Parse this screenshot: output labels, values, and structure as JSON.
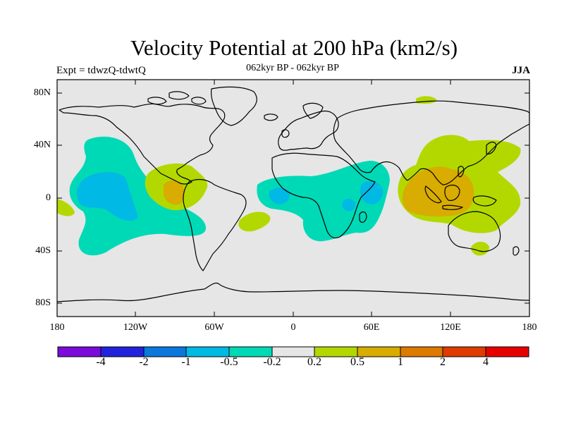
{
  "header": {
    "title": "Velocity Potential at 200 hPa (km2/s)",
    "experiment": "Expt = tdwzQ-tdwtQ",
    "period": "062kyr BP - 062kyr BP",
    "season": "JJA"
  },
  "map": {
    "projection": "cylindrical-equidistant",
    "lon_range": [
      -180,
      180
    ],
    "lat_range": [
      -90,
      90
    ],
    "coastlines": true,
    "background": "#e6e6e6",
    "lat_ticks": [
      "80N",
      "40N",
      "0",
      "40S",
      "80S"
    ],
    "lon_ticks": [
      "180",
      "120W",
      "60W",
      "0",
      "60E",
      "120E",
      "180"
    ]
  },
  "colorbar": {
    "colors": [
      "#7a0bd8",
      "#2222dd",
      "#0a78dc",
      "#00b9e4",
      "#00d9b6",
      "#e6e6e6",
      "#b3d800",
      "#d8ac00",
      "#dd7a00",
      "#de3c00",
      "#e60000"
    ],
    "labels": [
      "-4",
      "-2",
      "-1",
      "-0.5",
      "-0.2",
      "0.2",
      "0.5",
      "1",
      "2",
      "4"
    ]
  }
}
